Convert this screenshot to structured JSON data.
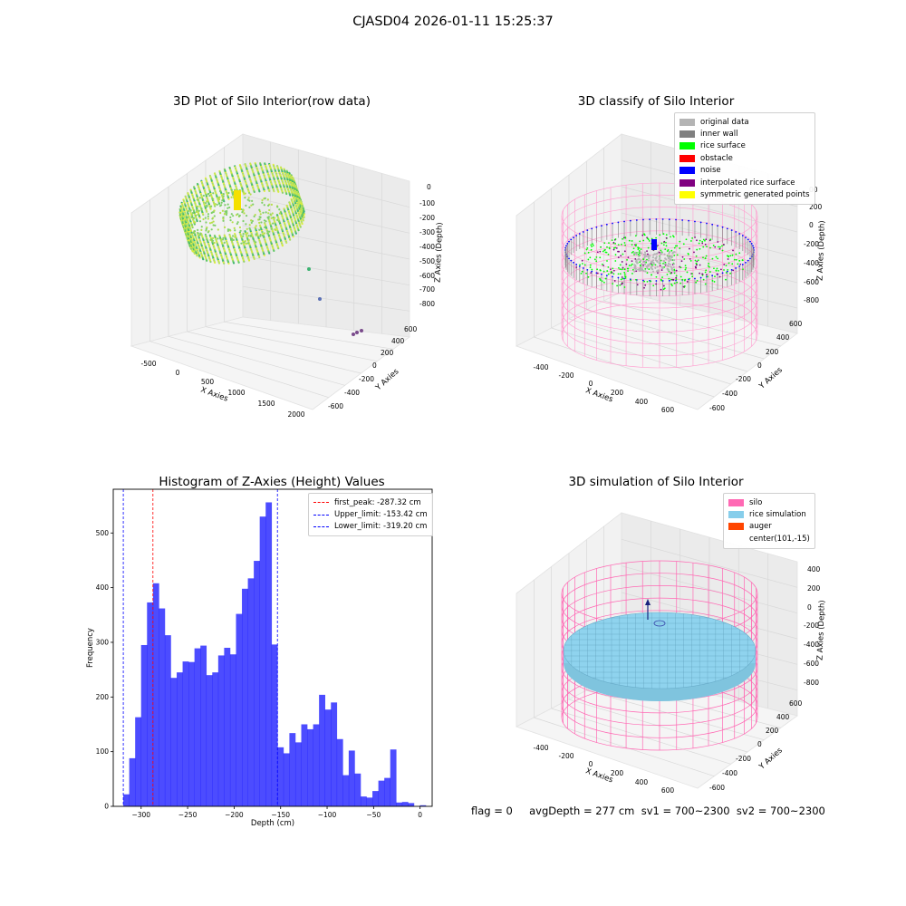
{
  "figure": {
    "suptitle": "CJASD04 2026-01-11 15:25:37",
    "status_line": "flag = 0     avgDepth = 277 cm  sv1 = 700~2300  sv2 = 700~2300"
  },
  "panels": {
    "raw": {
      "title": "3D Plot of Silo Interior(row data)",
      "x_label": "X Axies",
      "y_label": "Y Axies",
      "z_label": "Z Axies (Depth)",
      "x_ticks": [
        "-500",
        "0",
        "500",
        "1000",
        "1500",
        "2000"
      ],
      "y_ticks": [
        "-600",
        "-400",
        "-200",
        "0",
        "200",
        "400",
        "600"
      ],
      "z_ticks": [
        "0",
        "-100",
        "-200",
        "-300",
        "-400",
        "-500",
        "-600",
        "-700",
        "-800"
      ]
    },
    "classify": {
      "title": "3D classify of Silo Interior",
      "x_label": "X Axies",
      "y_label": "Y Axies",
      "z_label": "Z Axies (Depth)",
      "x_ticks": [
        "-400",
        "-200",
        "0",
        "200",
        "400",
        "600"
      ],
      "y_ticks": [
        "-600",
        "-400",
        "-200",
        "0",
        "200",
        "400",
        "600"
      ],
      "z_ticks": [
        "200",
        "0",
        "-200",
        "-400",
        "-600",
        "-800"
      ],
      "z_tick_partial": "00",
      "legend": [
        {
          "label": "original data",
          "color": "#b4b4b4"
        },
        {
          "label": "inner wall",
          "color": "#808080"
        },
        {
          "label": "rice surface",
          "color": "#00ff00"
        },
        {
          "label": "obstacle",
          "color": "#ff0000"
        },
        {
          "label": "noise",
          "color": "#0000ff"
        },
        {
          "label": "interpolated rice surface",
          "color": "#800080"
        },
        {
          "label": "symmetric generated points",
          "color": "#ffff00"
        }
      ]
    },
    "simulation": {
      "title": "3D simulation of Silo Interior",
      "x_label": "X Axies",
      "y_label": "Y Axies",
      "z_label": "Z Axies (Depth)",
      "x_ticks": [
        "-400",
        "-200",
        "0",
        "200",
        "400",
        "600"
      ],
      "y_ticks": [
        "-600",
        "-400",
        "-200",
        "0",
        "200",
        "400",
        "600"
      ],
      "z_ticks": [
        "400",
        "200",
        "0",
        "-200",
        "-400",
        "-600",
        "-800"
      ],
      "legend": [
        {
          "label": "silo",
          "color": "#ff69b4"
        },
        {
          "label": "rice simulation",
          "color": "#87ceeb"
        },
        {
          "label": "auger",
          "color": "#ff4500"
        },
        {
          "label": "center(101,-15)",
          "color": "#ffffff"
        }
      ]
    }
  },
  "chart_data": [
    {
      "type": "bar",
      "title": "Histogram of Z-Axies (Height) Values",
      "xlabel": "Depth (cm)",
      "ylabel": "Frequency",
      "xlim": [
        -330,
        13
      ],
      "ylim": [
        0,
        580
      ],
      "x_ticks": [
        -300,
        -250,
        -200,
        -150,
        -100,
        -50,
        0
      ],
      "y_ticks": [
        0,
        100,
        200,
        300,
        400,
        500
      ],
      "bar_color": "#0000ff",
      "bin_width": 6.38,
      "bin_start": -319.2,
      "values": [
        22,
        88,
        163,
        295,
        373,
        408,
        362,
        313,
        235,
        245,
        265,
        264,
        289,
        294,
        240,
        245,
        276,
        290,
        278,
        352,
        398,
        417,
        449,
        530,
        556,
        296,
        108,
        97,
        134,
        117,
        150,
        141,
        150,
        204,
        177,
        190,
        123,
        57,
        102,
        60,
        18,
        16,
        28,
        47,
        52,
        104,
        7,
        8,
        6,
        0,
        2
      ],
      "vlines": [
        {
          "label": "first_peak: -287.32 cm",
          "x": -287.32,
          "color": "#ff0000"
        },
        {
          "label": "Upper_limit: -153.42 cm",
          "x": -153.42,
          "color": "#0000ff"
        },
        {
          "label": "Lower_limit: -319.20 cm",
          "x": -319.2,
          "color": "#0000ff"
        }
      ]
    }
  ]
}
